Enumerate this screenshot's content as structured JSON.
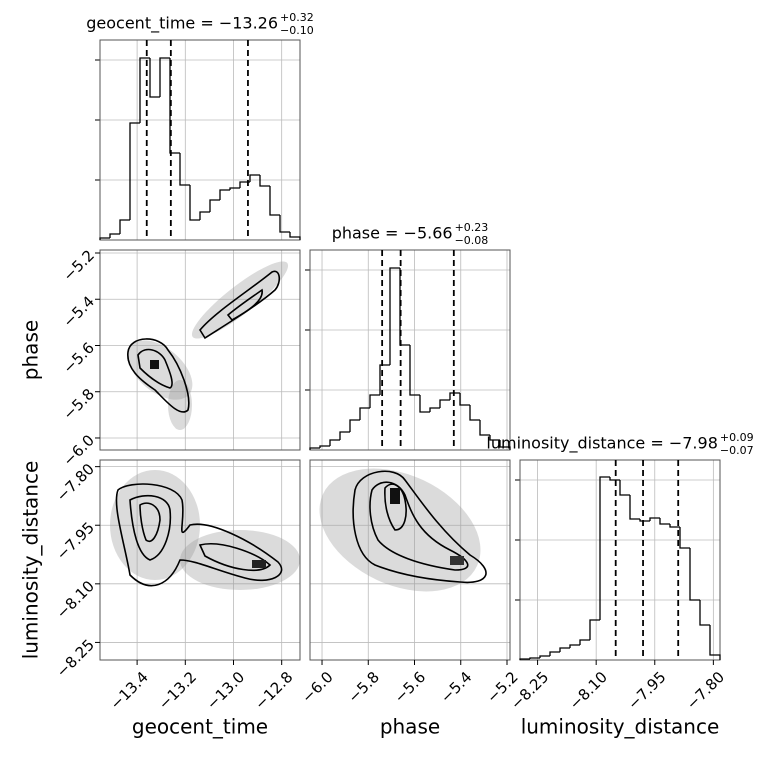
{
  "chart_data": {
    "type": "corner",
    "color": "#000000",
    "grid": true,
    "hist_ylim": [
      0,
      200
    ],
    "hist_yticks": [
      60,
      120,
      180
    ],
    "parameters": [
      {
        "name": "geocent_time",
        "title": {
          "text": "geocent_time = −13.26",
          "sup": "+0.32",
          "sub": "−0.10"
        },
        "lim": [
          -13.554,
          -12.724
        ],
        "ticks": [
          {
            "value": -13.4,
            "label": "−13.4"
          },
          {
            "value": -13.2,
            "label": "−13.2"
          },
          {
            "value": -13.0,
            "label": "−13.0"
          },
          {
            "value": -12.8,
            "label": "−12.8"
          }
        ],
        "quantiles": [
          -13.36,
          -13.26,
          -12.94
        ],
        "bins": [
          -13.554,
          -13.5125,
          -13.471,
          -13.4295,
          -13.388,
          -13.3465,
          -13.305,
          -13.2635,
          -13.222,
          -13.1805,
          -13.139,
          -13.0975,
          -13.056,
          -13.0145,
          -12.973,
          -12.9315,
          -12.89,
          -12.8485,
          -12.807,
          -12.7655,
          -12.724
        ],
        "counts": [
          2,
          6,
          20,
          117,
          182,
          143,
          182,
          87,
          55,
          20,
          28,
          40,
          50,
          52,
          58,
          65,
          54,
          25,
          8,
          3
        ]
      },
      {
        "name": "phase",
        "title": {
          "text": "phase = −5.66",
          "sup": "+0.23",
          "sub": "−0.08"
        },
        "lim": [
          -6.052,
          -5.187
        ],
        "ticks": [
          {
            "value": -6.0,
            "label": "−6.0"
          },
          {
            "value": -5.8,
            "label": "−5.8"
          },
          {
            "value": -5.6,
            "label": "−5.6"
          },
          {
            "value": -5.4,
            "label": "−5.4"
          },
          {
            "value": -5.2,
            "label": "−5.2"
          }
        ],
        "quantiles": [
          -5.74,
          -5.66,
          -5.43
        ],
        "bins": [
          -6.052,
          -6.00875,
          -5.9655,
          -5.92225,
          -5.879,
          -5.83575,
          -5.7925,
          -5.74925,
          -5.706,
          -5.66275,
          -5.6195,
          -5.57625,
          -5.533,
          -5.48975,
          -5.4465,
          -5.40325,
          -5.36,
          -5.31675,
          -5.2735,
          -5.23025,
          -5.187
        ],
        "counts": [
          2,
          4,
          10,
          18,
          30,
          42,
          55,
          85,
          182,
          105,
          55,
          38,
          42,
          50,
          57,
          45,
          30,
          15,
          10,
          3
        ]
      },
      {
        "name": "luminosity_distance",
        "title": {
          "text": "luminosity_distance = −7.98",
          "sup": "+0.09",
          "sub": "−0.07"
        },
        "lim": [
          -8.295,
          -7.783
        ],
        "ticks": [
          {
            "value": -8.25,
            "label": "−8.25"
          },
          {
            "value": -8.1,
            "label": "−8.10"
          },
          {
            "value": -7.95,
            "label": "−7.95"
          },
          {
            "value": -7.8,
            "label": "−7.80"
          }
        ],
        "quantiles": [
          -8.05,
          -7.98,
          -7.89
        ],
        "bins": [
          -8.295,
          -8.2694,
          -8.2438,
          -8.2182,
          -8.1926,
          -8.167,
          -8.1414,
          -8.1158,
          -8.0902,
          -8.0646,
          -8.039,
          -8.0134,
          -7.9878,
          -7.9622,
          -7.9366,
          -7.911,
          -7.8854,
          -7.8598,
          -7.8342,
          -7.8086,
          -7.783
        ],
        "counts": [
          1,
          2,
          4,
          8,
          12,
          15,
          20,
          40,
          183,
          180,
          165,
          141,
          139,
          142,
          136,
          133,
          112,
          60,
          35,
          5
        ]
      }
    ]
  }
}
